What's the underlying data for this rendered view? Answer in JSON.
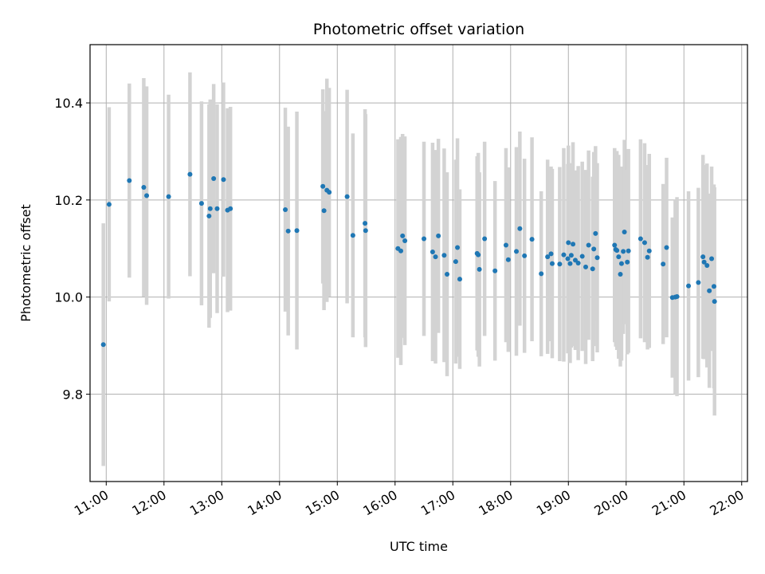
{
  "chart_data": {
    "type": "scatter",
    "title": "Photometric offset variation",
    "xlabel": "UTC time",
    "ylabel": "Photometric offset",
    "grid": true,
    "xlim": [
      10.72,
      22.1
    ],
    "ylim": [
      9.62,
      10.52
    ],
    "x_ticks": [
      11,
      12,
      13,
      14,
      15,
      16,
      17,
      18,
      19,
      20,
      21,
      22
    ],
    "x_tick_labels": [
      "11:00",
      "12:00",
      "13:00",
      "14:00",
      "15:00",
      "16:00",
      "17:00",
      "18:00",
      "19:00",
      "20:00",
      "21:00",
      "22:00"
    ],
    "y_ticks": [
      9.8,
      10.0,
      10.2,
      10.4
    ],
    "y_tick_labels": [
      "9.8",
      "10.0",
      "10.2",
      "10.4"
    ],
    "colors": {
      "point": "#1f77b4",
      "errorbar": "#d3d3d3",
      "grid": "#b0b0b0"
    },
    "series": [
      {
        "x": [
          10.95,
          11.05,
          11.4,
          11.65,
          11.7,
          12.08,
          12.45,
          12.65,
          12.78,
          12.8,
          12.86,
          12.92,
          13.03,
          13.1,
          13.15,
          14.1,
          14.15,
          14.3,
          14.75,
          14.77,
          14.82,
          14.86,
          15.17,
          15.27,
          15.48,
          15.49,
          16.05,
          16.1,
          16.13,
          16.17,
          16.5,
          16.65,
          16.7,
          16.75,
          16.85,
          16.9,
          17.05,
          17.08,
          17.12,
          17.42,
          17.44,
          17.46,
          17.55,
          17.73,
          17.92,
          17.96,
          18.1,
          18.16,
          18.24,
          18.37,
          18.53,
          18.64,
          18.7,
          18.72,
          18.85,
          18.92,
          18.99,
          19.0,
          19.03,
          19.05,
          19.08,
          19.12,
          19.17,
          19.24,
          19.3,
          19.35,
          19.42,
          19.44,
          19.47,
          19.5,
          19.8,
          19.82,
          19.84,
          19.87,
          19.9,
          19.92,
          19.95,
          19.97,
          20.02,
          20.04,
          20.25,
          20.32,
          20.37,
          20.4,
          20.64,
          20.7,
          20.8,
          20.85,
          20.88,
          21.08,
          21.25,
          21.33,
          21.35,
          21.4,
          21.44,
          21.48,
          21.52,
          21.53
        ],
        "y": [
          9.902,
          10.191,
          10.24,
          10.226,
          10.209,
          10.207,
          10.253,
          10.193,
          10.167,
          10.182,
          10.244,
          10.182,
          10.242,
          10.179,
          10.182,
          10.18,
          10.136,
          10.137,
          10.228,
          10.178,
          10.22,
          10.216,
          10.207,
          10.127,
          10.152,
          10.137,
          10.1,
          10.095,
          10.126,
          10.116,
          10.12,
          10.093,
          10.083,
          10.126,
          10.086,
          10.047,
          10.073,
          10.102,
          10.037,
          10.09,
          10.087,
          10.057,
          10.12,
          10.054,
          10.107,
          10.077,
          10.094,
          10.141,
          10.085,
          10.119,
          10.048,
          10.083,
          10.089,
          10.069,
          10.068,
          10.087,
          10.079,
          10.112,
          10.069,
          10.086,
          10.109,
          10.076,
          10.07,
          10.084,
          10.062,
          10.107,
          10.058,
          10.099,
          10.131,
          10.081,
          10.107,
          10.098,
          10.096,
          10.083,
          10.047,
          10.069,
          10.094,
          10.134,
          10.072,
          10.095,
          10.12,
          10.112,
          10.082,
          10.095,
          10.068,
          10.102,
          9.999,
          10.0,
          10.001,
          10.023,
          10.03,
          10.083,
          10.072,
          10.065,
          10.013,
          10.079,
          10.022,
          9.991
        ],
        "yerr": [
          0.25,
          0.2,
          0.2,
          0.225,
          0.225,
          0.21,
          0.21,
          0.21,
          0.23,
          0.225,
          0.195,
          0.215,
          0.2,
          0.21,
          0.21,
          0.21,
          0.215,
          0.245,
          0.2,
          0.205,
          0.23,
          0.215,
          0.22,
          0.21,
          0.235,
          0.24,
          0.225,
          0.235,
          0.21,
          0.215,
          0.2,
          0.225,
          0.22,
          0.2,
          0.22,
          0.21,
          0.21,
          0.225,
          0.185,
          0.2,
          0.21,
          0.2,
          0.2,
          0.185,
          0.2,
          0.19,
          0.215,
          0.2,
          0.2,
          0.21,
          0.17,
          0.2,
          0.18,
          0.195,
          0.2,
          0.22,
          0.195,
          0.2,
          0.205,
          0.19,
          0.21,
          0.185,
          0.2,
          0.195,
          0.2,
          0.195,
          0.19,
          0.2,
          0.18,
          0.195,
          0.2,
          0.2,
          0.205,
          0.21,
          0.19,
          0.2,
          0.17,
          0.19,
          0.19,
          0.21,
          0.205,
          0.205,
          0.19,
          0.2,
          0.165,
          0.185,
          0.165,
          0.2,
          0.205,
          0.195,
          0.195,
          0.21,
          0.2,
          0.21,
          0.2,
          0.19,
          0.21,
          0.235
        ]
      }
    ]
  }
}
